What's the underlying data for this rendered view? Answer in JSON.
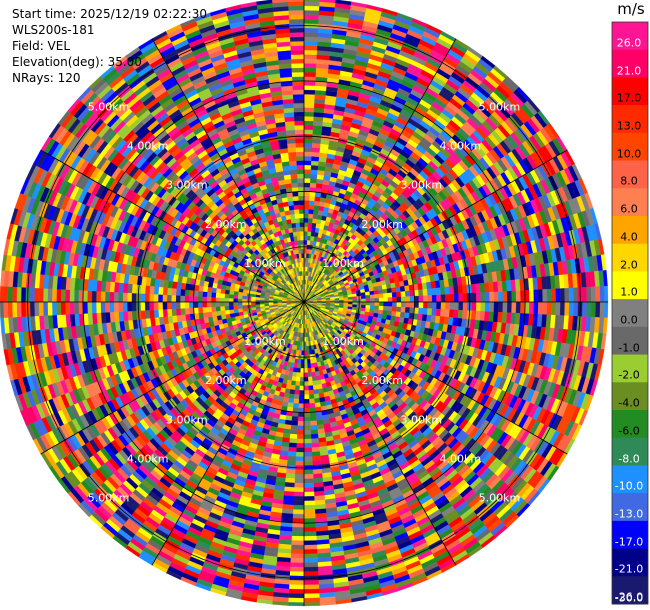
{
  "info": {
    "start_time": "Start time: 2025/12/19 02:22:30",
    "instrument": "WLS200s-181",
    "field": "Field: VEL",
    "elevation": "Elevation(deg): 35.00",
    "nrays": "NRays: 120"
  },
  "colorbar": {
    "title": "m/s",
    "ticks": [
      "26.0",
      "21.0",
      "17.0",
      "13.0",
      "10.0",
      "8.0",
      "6.0",
      "4.0",
      "2.0",
      "1.0",
      "0.0",
      "-1.0",
      "-2.0",
      "-4.0",
      "-6.0",
      "-8.0",
      "-10.0",
      "-13.0",
      "-17.0",
      "-21.0",
      "-26.0",
      "-30.0"
    ],
    "colors": [
      "#ff1493",
      "#ff0066",
      "#ff0000",
      "#ff2a00",
      "#ff4500",
      "#ff6347",
      "#ff7f50",
      "#ffa500",
      "#ffd700",
      "#ffff00",
      "#808080",
      "#696969",
      "#9acd32",
      "#6b8e23",
      "#228b22",
      "#2e8b57",
      "#1e90ff",
      "#4169e1",
      "#0000ff",
      "#00008b",
      "#191970"
    ]
  },
  "chart_data": {
    "type": "polar-ppi",
    "field": "VEL",
    "units": "m/s",
    "nrays": 120,
    "range_rings_km": [
      1,
      2,
      3,
      4,
      5
    ],
    "ring_labels": [
      "1.00km",
      "2.00km",
      "3.00km",
      "4.00km",
      "5.00km"
    ],
    "max_range_km": 5.5,
    "vmin": -30,
    "vmax": 26
  }
}
